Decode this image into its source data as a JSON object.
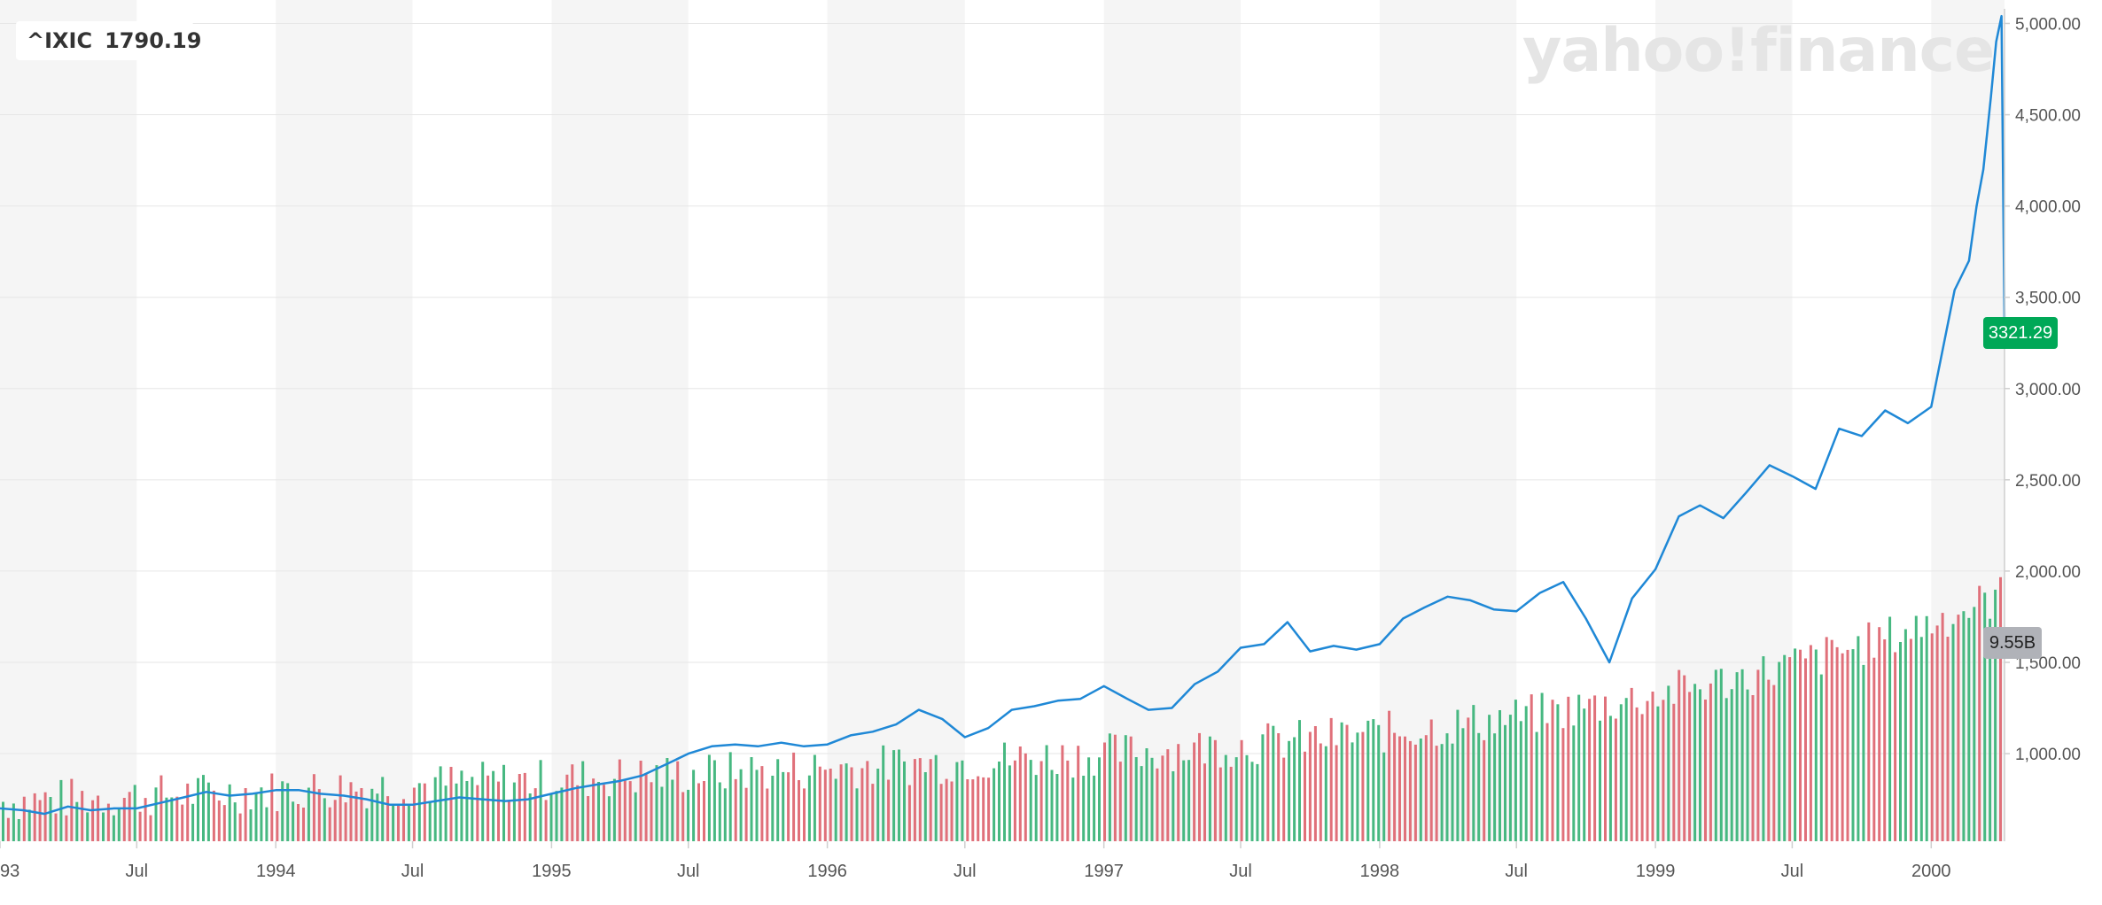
{
  "legend": {
    "symbol": "^IXIC",
    "value": "1790.19"
  },
  "watermark": "yahoo!finance",
  "current_price_badge": "3321.29",
  "volume_badge": "9.55B",
  "colors": {
    "line": "#1f88d6",
    "volume_up": "#47b881",
    "volume_down": "#e0707a",
    "badge_green": "#00a857",
    "band": "#f5f5f5"
  },
  "chart_data": {
    "type": "line",
    "xlabel": "",
    "ylabel": "",
    "ylim": [
      520,
      5080
    ],
    "y_ticks": [
      1000,
      1500,
      2000,
      2500,
      3000,
      3500,
      4000,
      4500,
      5000
    ],
    "y_tick_labels": [
      "1,000.00",
      "1,500.00",
      "2,000.00",
      "2,500.00",
      "3,000.00",
      "3,500.00",
      "4,000.00",
      "4,500.00",
      "5,000.00"
    ],
    "x_range": [
      "1993-01-01",
      "2000-04-07"
    ],
    "x_ticks": [
      {
        "date": "1993-01-01",
        "label": "1993"
      },
      {
        "date": "1993-07-01",
        "label": "Jul"
      },
      {
        "date": "1994-01-01",
        "label": "1994"
      },
      {
        "date": "1994-07-01",
        "label": "Jul"
      },
      {
        "date": "1995-01-01",
        "label": "1995"
      },
      {
        "date": "1995-07-01",
        "label": "Jul"
      },
      {
        "date": "1996-01-01",
        "label": "1996"
      },
      {
        "date": "1996-07-01",
        "label": "Jul"
      },
      {
        "date": "1997-01-01",
        "label": "1997"
      },
      {
        "date": "1997-07-01",
        "label": "Jul"
      },
      {
        "date": "1998-01-01",
        "label": "1998"
      },
      {
        "date": "1998-07-01",
        "label": "Jul"
      },
      {
        "date": "1999-01-01",
        "label": "1999"
      },
      {
        "date": "1999-07-01",
        "label": "Jul"
      },
      {
        "date": "2000-01-01",
        "label": "2000"
      }
    ],
    "grid": true,
    "series": [
      {
        "x": [
          "1993-01-01",
          "1993-02-01",
          "1993-03-01",
          "1993-04-01",
          "1993-05-01",
          "1993-06-01",
          "1993-07-01",
          "1993-08-01",
          "1993-09-01",
          "1993-10-01",
          "1993-11-01",
          "1993-12-01",
          "1994-01-01",
          "1994-02-01",
          "1994-03-01",
          "1994-04-01",
          "1994-05-01",
          "1994-06-01",
          "1994-07-01",
          "1994-08-01",
          "1994-09-01",
          "1994-10-01",
          "1994-11-01",
          "1994-12-01",
          "1995-01-01",
          "1995-02-01",
          "1995-03-01",
          "1995-04-01",
          "1995-05-01",
          "1995-06-01",
          "1995-07-01",
          "1995-08-01",
          "1995-09-01",
          "1995-10-01",
          "1995-11-01",
          "1995-12-01",
          "1996-01-01",
          "1996-02-01",
          "1996-03-01",
          "1996-04-01",
          "1996-05-01",
          "1996-06-01",
          "1996-07-01",
          "1996-08-01",
          "1996-09-01",
          "1996-10-01",
          "1996-11-01",
          "1996-12-01",
          "1997-01-01",
          "1997-02-01",
          "1997-03-01",
          "1997-04-01",
          "1997-05-01",
          "1997-06-01",
          "1997-07-01",
          "1997-08-01",
          "1997-09-01",
          "1997-10-01",
          "1997-11-01",
          "1997-12-01",
          "1998-01-01",
          "1998-02-01",
          "1998-03-01",
          "1998-04-01",
          "1998-05-01",
          "1998-06-01",
          "1998-07-01",
          "1998-08-01",
          "1998-09-01",
          "1998-10-01",
          "1998-11-01",
          "1998-12-01",
          "1999-01-01",
          "1999-02-01",
          "1999-03-01",
          "1999-04-01",
          "1999-05-01",
          "1999-06-01",
          "1999-07-01",
          "1999-08-01",
          "1999-09-01",
          "1999-10-01",
          "1999-11-01",
          "1999-12-01",
          "2000-01-01",
          "2000-02-01",
          "2000-02-20",
          "2000-03-01",
          "2000-03-10",
          "2000-03-20",
          "2000-03-27",
          "2000-04-03",
          "2000-04-07"
        ],
        "y": [
          700,
          690,
          670,
          710,
          690,
          700,
          700,
          730,
          760,
          790,
          770,
          780,
          800,
          800,
          780,
          770,
          750,
          720,
          720,
          740,
          760,
          750,
          740,
          750,
          780,
          810,
          830,
          850,
          880,
          940,
          1000,
          1040,
          1050,
          1040,
          1060,
          1040,
          1050,
          1100,
          1120,
          1160,
          1240,
          1190,
          1090,
          1140,
          1240,
          1260,
          1290,
          1300,
          1370,
          1300,
          1240,
          1250,
          1380,
          1450,
          1580,
          1600,
          1720,
          1560,
          1590,
          1570,
          1600,
          1740,
          1800,
          1860,
          1840,
          1790,
          1780,
          1880,
          1940,
          1740,
          1500,
          1850,
          2010,
          2300,
          2360,
          2290,
          2430,
          2580,
          2520,
          2450,
          2780,
          2740,
          2880,
          2810,
          2900,
          3540,
          3700,
          4000,
          4200,
          4600,
          4900,
          5040,
          3321.29
        ]
      }
    ],
    "volume": {
      "unit": "B",
      "ylim": [
        0,
        12.5
      ],
      "latest": "9.55B",
      "description_of_trend": []
    }
  }
}
